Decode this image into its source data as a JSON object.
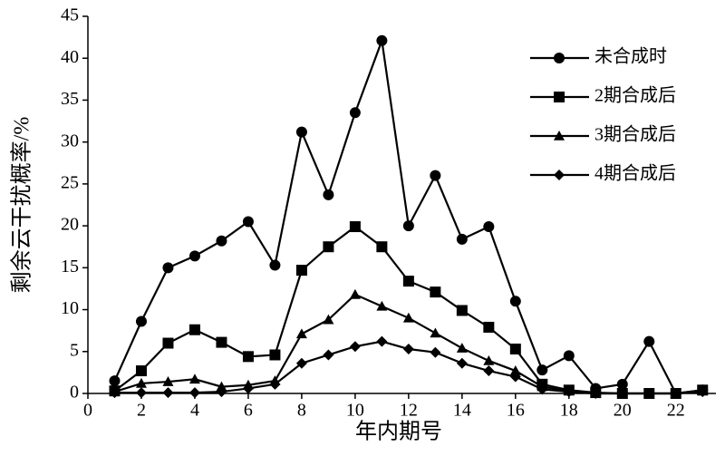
{
  "chart_data": {
    "type": "line",
    "x_label": "年内期号",
    "y_label": "剩余云干扰概率/%",
    "x": [
      1,
      2,
      3,
      4,
      5,
      6,
      7,
      8,
      9,
      10,
      11,
      12,
      13,
      14,
      15,
      16,
      17,
      18,
      19,
      20,
      21,
      22,
      23
    ],
    "series": [
      {
        "name": "未合成时",
        "color": "#000000",
        "marker": "circle",
        "values": [
          1.5,
          8.6,
          15,
          16.4,
          18.2,
          20.5,
          15.3,
          31.2,
          23.7,
          33.5,
          42.1,
          20,
          26,
          18.4,
          19.9,
          11,
          2.8,
          4.5,
          0.6,
          1.1,
          6.2,
          0,
          0.4
        ]
      },
      {
        "name": "2期合成后",
        "color": "#000000",
        "marker": "square",
        "values": [
          0.3,
          2.7,
          6,
          7.6,
          6.1,
          4.4,
          4.6,
          14.7,
          17.5,
          19.9,
          17.5,
          13.4,
          12.1,
          9.9,
          7.9,
          5.3,
          1.1,
          0.4,
          0.1,
          0,
          0,
          0,
          0.4
        ]
      },
      {
        "name": "3期合成后",
        "color": "#000000",
        "marker": "triangle",
        "values": [
          0.2,
          1.2,
          1.4,
          1.7,
          0.8,
          1,
          1.5,
          7.1,
          8.8,
          11.8,
          10.4,
          9,
          7.2,
          5.4,
          3.9,
          2.7,
          0.8,
          0.3,
          0,
          0,
          0,
          0,
          0.3
        ]
      },
      {
        "name": "4期合成后",
        "color": "#000000",
        "marker": "diamond",
        "values": [
          0.1,
          0.1,
          0.1,
          0.1,
          0.2,
          0.6,
          1.1,
          3.6,
          4.6,
          5.6,
          6.2,
          5.3,
          4.9,
          3.6,
          2.7,
          2,
          0.5,
          0.2,
          0,
          0,
          0,
          0,
          0.2
        ]
      }
    ],
    "xlim": [
      0,
      23.5
    ],
    "xticks": [
      0,
      2,
      4,
      6,
      8,
      10,
      12,
      14,
      16,
      18,
      20,
      22
    ],
    "ylim": [
      0,
      45
    ],
    "yticks": [
      0,
      5,
      10,
      15,
      20,
      25,
      30,
      35,
      40,
      45
    ]
  }
}
